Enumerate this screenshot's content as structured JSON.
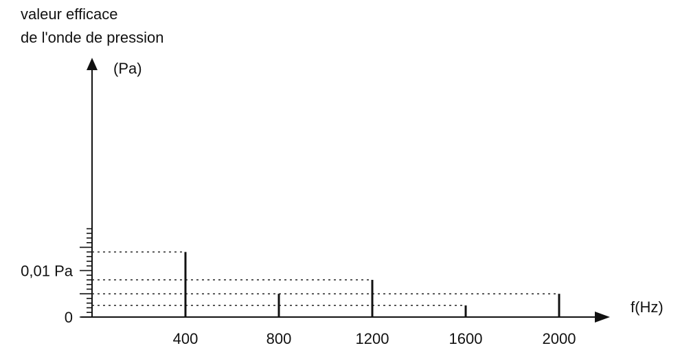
{
  "chart_data": {
    "type": "bar",
    "ylabel_lines": [
      "valeur efficace",
      "de l'onde de pression"
    ],
    "yunit": "(Pa)",
    "xlabel": "f(Hz)",
    "x_tick_labels": [
      "400",
      "800",
      "1200",
      "1600",
      "2000"
    ],
    "y_tick_labels": [
      {
        "value": 0,
        "label": "0"
      },
      {
        "value": 0.01,
        "label": "0,01 Pa"
      }
    ],
    "xlim": [
      0,
      2200
    ],
    "ylim": [
      0,
      0.0185
    ],
    "y_minor_step": 0.001,
    "y_major_step": 0.01,
    "grid": false,
    "guide_lines": "dashed",
    "points": [
      {
        "x": 400,
        "y": 0.014
      },
      {
        "x": 800,
        "y": 0.005
      },
      {
        "x": 1200,
        "y": 0.008
      },
      {
        "x": 1600,
        "y": 0.0025
      },
      {
        "x": 2000,
        "y": 0.005
      }
    ],
    "colors": {
      "ink": "#111111",
      "background": "#ffffff"
    }
  }
}
